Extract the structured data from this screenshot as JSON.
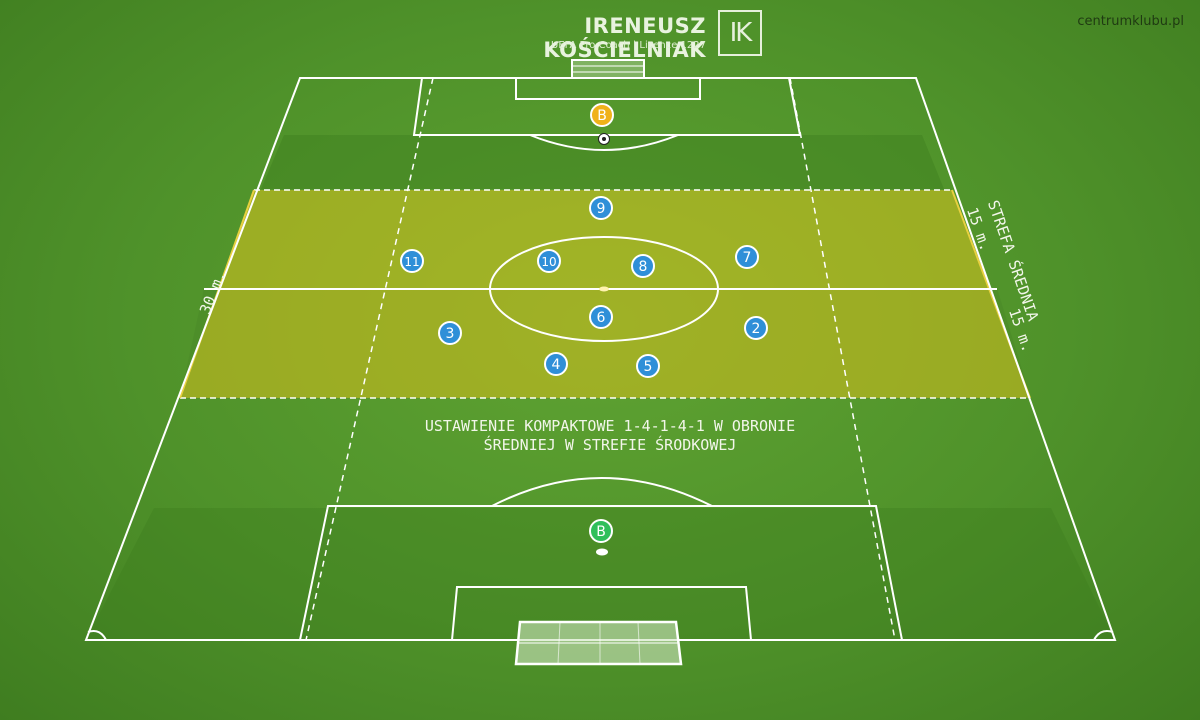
{
  "header": {
    "coach_name": "IRENEUSZ KOŚCIELNIAK",
    "coach_subtitle": "UEFA Pro Coach  |  Licence 1227",
    "logo_letters": "IK"
  },
  "site_label": "centrumklubu.pl",
  "caption": {
    "line1": "USTAWIENIE KOMPAKTOWE 1-4-1-4-1 W OBRONIE",
    "line2": "ŚREDNIEJ  W STREFIE ŚRODKOWEJ"
  },
  "zone": {
    "left_label": "30 m.",
    "right_upper_label": "15 m.",
    "right_lower_label": "15 m.",
    "right_title": "STREFA ŚREDNIA",
    "color": "#d8c31f"
  },
  "players": [
    {
      "number": "9"
    },
    {
      "number": "11"
    },
    {
      "number": "10"
    },
    {
      "number": "8"
    },
    {
      "number": "7"
    },
    {
      "number": "6"
    },
    {
      "number": "3"
    },
    {
      "number": "2"
    },
    {
      "number": "4"
    },
    {
      "number": "5"
    }
  ],
  "goalkeepers": {
    "top": {
      "label": "B",
      "color": "#f0b21a"
    },
    "bottom": {
      "label": "B",
      "color": "#2fbf5a"
    }
  },
  "colors": {
    "player": "#2f8fd8",
    "lines": "#ffffff"
  }
}
